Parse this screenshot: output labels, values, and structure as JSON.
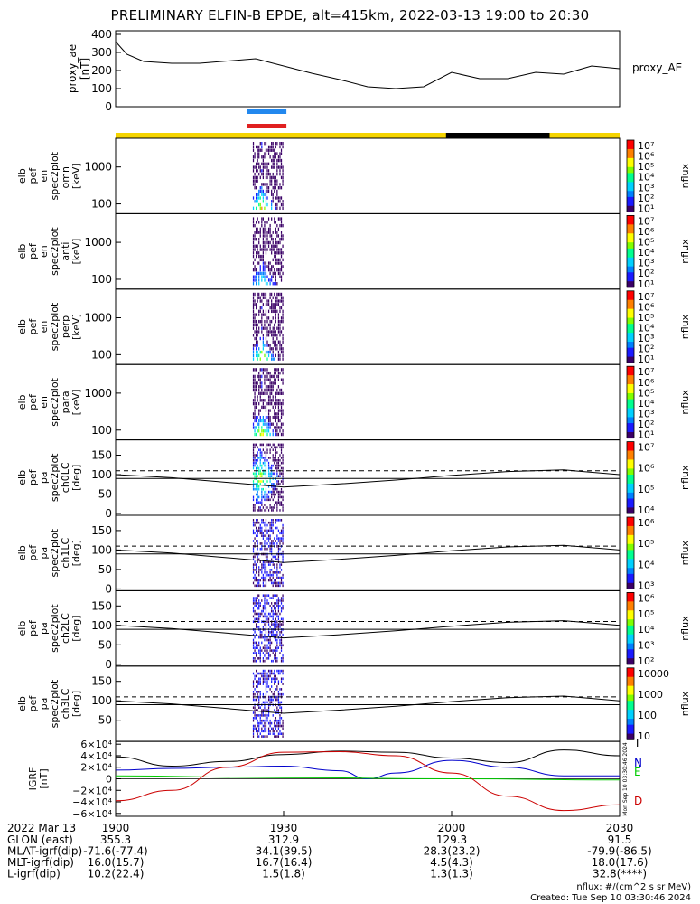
{
  "title": "PRELIMINARY ELFIN-B EPDE, alt=415km, 2022-03-13 19:00 to 20:30",
  "side_stamp": "Mon Sep 10 03:30:46 2024",
  "footer": {
    "units": "nflux: #/(cm^2 s sr MeV)",
    "created": "Created: Tue Sep 10 03:30:46 2024"
  },
  "chart_data": [
    {
      "type": "line",
      "panel": "proxy_ae",
      "ylabel_lines": [
        "proxy_ae",
        "[nT]"
      ],
      "legend": "proxy_AE",
      "ylim": [
        0,
        420
      ],
      "yticks": [
        "400",
        "300",
        "200",
        "100",
        "0"
      ],
      "x": [
        0,
        2,
        5,
        10,
        15,
        25,
        35,
        40,
        45,
        50,
        55,
        60,
        65,
        70,
        75,
        80,
        85,
        90
      ],
      "y": [
        360,
        290,
        250,
        240,
        240,
        265,
        185,
        150,
        110,
        100,
        110,
        190,
        155,
        155,
        190,
        180,
        225,
        210
      ]
    },
    {
      "type": "heatmap",
      "panel": "energy spectrogram omni",
      "ylabel_lines": [
        "elb",
        "pef",
        "en",
        "spec2plot",
        "omni",
        "[keV]"
      ],
      "yticks": [
        "1000",
        "100"
      ],
      "colorbar_label": "nflux",
      "colorbar_ticks": [
        "10^7",
        "10^6",
        "10^5",
        "10^4",
        "10^3",
        "10^2",
        "10^1"
      ]
    },
    {
      "type": "heatmap",
      "panel": "energy spectrogram anti",
      "ylabel_lines": [
        "elb",
        "pef",
        "en",
        "spec2plot",
        "anti",
        "[keV]"
      ],
      "yticks": [
        "1000",
        "100"
      ],
      "colorbar_label": "nflux",
      "colorbar_ticks": [
        "10^7",
        "10^6",
        "10^5",
        "10^4",
        "10^3",
        "10^2",
        "10^1"
      ]
    },
    {
      "type": "heatmap",
      "panel": "energy spectrogram perp",
      "ylabel_lines": [
        "elb",
        "pef",
        "en",
        "spec2plot",
        "perp",
        "[keV]"
      ],
      "yticks": [
        "1000",
        "100"
      ],
      "colorbar_label": "nflux",
      "colorbar_ticks": [
        "10^7",
        "10^6",
        "10^5",
        "10^4",
        "10^3",
        "10^2",
        "10^1"
      ]
    },
    {
      "type": "heatmap",
      "panel": "energy spectrogram para",
      "ylabel_lines": [
        "elb",
        "pef",
        "en",
        "spec2plot",
        "para",
        "[keV]"
      ],
      "yticks": [
        "1000",
        "100"
      ],
      "colorbar_label": "nflux",
      "colorbar_ticks": [
        "10^7",
        "10^6",
        "10^5",
        "10^4",
        "10^3",
        "10^2",
        "10^1"
      ]
    },
    {
      "type": "heatmap",
      "panel": "pitch angle ch0LC",
      "ylabel_lines": [
        "elb",
        "pef",
        "pa",
        "spec2plot",
        "ch0LC",
        "[deg]"
      ],
      "yticks": [
        "150",
        "100",
        "50",
        "0"
      ],
      "colorbar_label": "nflux",
      "colorbar_ticks": [
        "10^7",
        "10^6",
        "10^5",
        "10^4"
      ]
    },
    {
      "type": "heatmap",
      "panel": "pitch angle ch1LC",
      "ylabel_lines": [
        "elb",
        "pef",
        "pa",
        "spec2plot",
        "ch1LC",
        "[deg]"
      ],
      "yticks": [
        "150",
        "100",
        "50",
        "0"
      ],
      "colorbar_label": "nflux",
      "colorbar_ticks": [
        "10^6",
        "10^5",
        "10^4",
        "10^3"
      ]
    },
    {
      "type": "heatmap",
      "panel": "pitch angle ch2LC",
      "ylabel_lines": [
        "elb",
        "pef",
        "pa",
        "spec2plot",
        "ch2LC",
        "[deg]"
      ],
      "yticks": [
        "150",
        "100",
        "50",
        "0"
      ],
      "colorbar_label": "nflux",
      "colorbar_ticks": [
        "10^6",
        "10^5",
        "10^4",
        "10^3",
        "10^2"
      ]
    },
    {
      "type": "heatmap",
      "panel": "pitch angle ch3LC",
      "ylabel_lines": [
        "elb",
        "pef",
        "pa",
        "spec2plot",
        "ch3LC",
        "[deg]"
      ],
      "yticks": [
        "150",
        "100",
        "50"
      ],
      "colorbar_label": "nflux",
      "colorbar_ticks": [
        "10000",
        "1000",
        "100",
        "10"
      ]
    },
    {
      "type": "line",
      "panel": "IGRF",
      "ylabel_lines": [
        "IGRF",
        "[nT]"
      ],
      "ylim": [
        -65000,
        65000
      ],
      "yticks": [
        "6×10^4",
        "4×10^4",
        "2×10^4",
        "0",
        "−2×10^4",
        "−4×10^4",
        "−6×10^4"
      ],
      "series": [
        {
          "name": "T",
          "color": "#000000",
          "x": [
            0,
            10,
            20,
            30,
            40,
            50,
            60,
            70,
            80,
            90
          ],
          "y": [
            38000,
            22000,
            30000,
            42000,
            48000,
            46000,
            36000,
            28000,
            50000,
            40000
          ]
        },
        {
          "name": "N",
          "color": "#0000cc",
          "x": [
            0,
            10,
            20,
            30,
            40,
            45,
            50,
            60,
            70,
            80,
            90
          ],
          "y": [
            15000,
            18000,
            20000,
            22000,
            14000,
            0,
            10000,
            32000,
            20000,
            5000,
            5000
          ]
        },
        {
          "name": "E",
          "color": "#00cc00",
          "x": [
            0,
            30,
            60,
            90
          ],
          "y": [
            5000,
            2000,
            0,
            -2000
          ]
        },
        {
          "name": "D",
          "color": "#cc0000",
          "x": [
            0,
            10,
            20,
            30,
            40,
            50,
            60,
            70,
            80,
            90
          ],
          "y": [
            -38000,
            -20000,
            20000,
            46000,
            47000,
            40000,
            10000,
            -30000,
            -55000,
            -45000
          ]
        }
      ]
    }
  ],
  "time_axis": {
    "date_label": "2022 Mar 13",
    "ticks": [
      "1900",
      "1930",
      "2000",
      "2030"
    ],
    "rows": [
      {
        "label": "GLON (east)",
        "values": [
          "355.3",
          "312.9",
          "129.3",
          "91.5"
        ]
      },
      {
        "label": "MLAT-igrf(dip)",
        "values": [
          "-71.6(-77.4)",
          "34.1(39.5)",
          "28.3(23.2)",
          "-79.9(-86.5)"
        ]
      },
      {
        "label": "MLT-igrf(dip)",
        "values": [
          "16.0(15.7)",
          "16.7(16.4)",
          "4.5(4.3)",
          "18.0(17.6)"
        ]
      },
      {
        "label": "L-igrf(dip)",
        "values": [
          "10.2(22.4)",
          "1.5(1.8)",
          "1.3(1.3)",
          "32.8(****)"
        ]
      }
    ]
  },
  "colors": {
    "sunlit_bar": "#f5d400",
    "shadow_bar": "#000000",
    "science_zone_blue": "#2288ee",
    "science_zone_red": "#e02020"
  }
}
